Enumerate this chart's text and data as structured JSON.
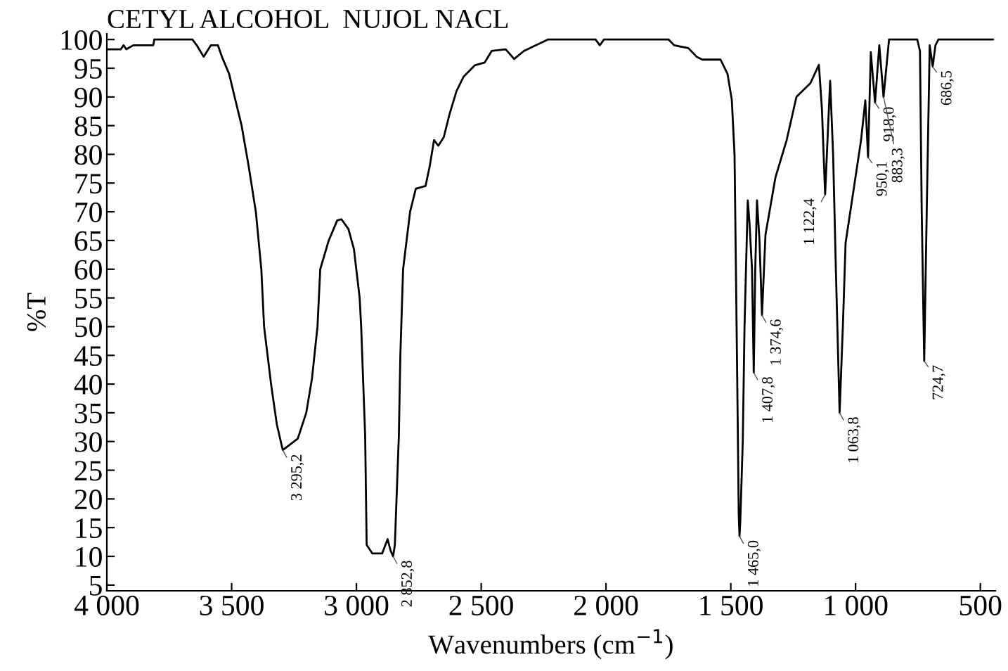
{
  "chart_data": {
    "type": "line",
    "title": "CETYL ALCOHOL  NUJOL NACL",
    "xlabel": "Wavenumbers (cm$^{−1}$)",
    "ylabel": "%T",
    "x": [
      4000,
      3944,
      3933,
      3922,
      3894,
      3814,
      3810,
      3657,
      3640,
      3612,
      3583,
      3555,
      3539,
      3510,
      3488,
      3460,
      3432,
      3403,
      3381,
      3370,
      3342,
      3319,
      3295,
      3235,
      3201,
      3178,
      3156,
      3145,
      3111,
      3077,
      3060,
      3032,
      3010,
      2987,
      2981,
      2965,
      2959,
      2936,
      2897,
      2875,
      2863,
      2853,
      2846,
      2830,
      2824,
      2813,
      2785,
      2762,
      2723,
      2706,
      2689,
      2672,
      2650,
      2627,
      2599,
      2571,
      2526,
      2486,
      2458,
      2402,
      2368,
      2329,
      2233,
      2042,
      2025,
      2008,
      1907,
      1749,
      1727,
      1670,
      1637,
      1614,
      1541,
      1513,
      1496,
      1485,
      1474,
      1468,
      1465,
      1462,
      1452,
      1445,
      1432,
      1425,
      1415,
      1408,
      1402,
      1395,
      1385,
      1375,
      1361,
      1321,
      1276,
      1237,
      1181,
      1147,
      1135,
      1122,
      1110,
      1102,
      1090,
      1079,
      1064,
      1051,
      1040,
      1006,
      978,
      961,
      950,
      939,
      922,
      905,
      888,
      866,
      800,
      753,
      742,
      735,
      725,
      715,
      703,
      691,
      680,
      668,
      449
    ],
    "values": [
      98.3,
      98.3,
      99,
      98.3,
      99,
      99,
      100,
      100,
      99,
      97,
      99,
      99,
      97,
      94,
      90,
      85,
      78,
      70,
      60,
      50,
      40,
      33,
      28.5,
      30.5,
      35,
      41,
      50,
      60,
      65,
      68.5,
      68.7,
      67,
      63.5,
      55,
      50,
      31,
      12,
      10.5,
      10.5,
      13,
      11,
      10,
      12,
      31,
      45,
      60,
      70,
      74,
      74.5,
      78,
      82.5,
      81.5,
      83,
      87,
      91,
      93.5,
      95.5,
      96,
      98,
      98.3,
      96.6,
      98,
      100,
      100,
      99,
      100,
      100,
      100,
      99,
      98.5,
      97,
      96.5,
      96.5,
      94,
      89.5,
      80,
      40,
      17,
      13.5,
      16,
      30,
      50,
      72,
      68,
      60,
      42,
      60,
      72,
      65,
      52,
      66,
      76,
      82.5,
      90,
      92.4,
      95.6,
      88,
      73,
      85,
      92.8,
      80,
      60,
      35,
      50,
      64.6,
      74.4,
      82.5,
      89.4,
      79.5,
      97.8,
      89,
      99,
      90,
      100,
      100,
      100,
      98,
      70,
      44,
      70,
      99,
      95.3,
      99,
      100,
      100
    ],
    "color": "#000000",
    "line_style": "solid",
    "marker": "none",
    "xlim": [
      4000,
      440
    ],
    "ylim": [
      4,
      101
    ],
    "xticks": [
      {
        "value": 4000,
        "label": "4 000"
      },
      {
        "value": 3500,
        "label": "3 500"
      },
      {
        "value": 3000,
        "label": "3 000"
      },
      {
        "value": 2500,
        "label": "2 500"
      },
      {
        "value": 2000,
        "label": "2 000"
      },
      {
        "value": 1500,
        "label": "1 500"
      },
      {
        "value": 1000,
        "label": "1 000"
      },
      500
    ],
    "yticks": [
      5,
      10,
      15,
      20,
      25,
      30,
      35,
      40,
      45,
      50,
      55,
      60,
      65,
      70,
      75,
      80,
      85,
      90,
      95,
      100
    ],
    "grid": false,
    "legend": false,
    "annotations": [
      {
        "text": "3 295,2",
        "x": 3295,
        "y": 28.5
      },
      {
        "text": "2 852,8",
        "x": 2853,
        "y": 10
      },
      {
        "text": "1 465,0",
        "x": 1465,
        "y": 13.5
      },
      {
        "text": "1 407,8",
        "x": 1408,
        "y": 42
      },
      {
        "text": "1 374,6",
        "x": 1375,
        "y": 52
      },
      {
        "text": "1 122,4",
        "x": 1122,
        "y": 73
      },
      {
        "text": "1 063,8",
        "x": 1064,
        "y": 35
      },
      {
        "text": "950,1",
        "x": 950,
        "y": 79.5
      },
      {
        "text": "918,0",
        "x": 922,
        "y": 89
      },
      {
        "text": "883,3",
        "x": 888,
        "y": 90
      },
      {
        "text": "724,7",
        "x": 725,
        "y": 44
      },
      {
        "text": "686,5",
        "x": 691,
        "y": 95.3
      }
    ]
  }
}
